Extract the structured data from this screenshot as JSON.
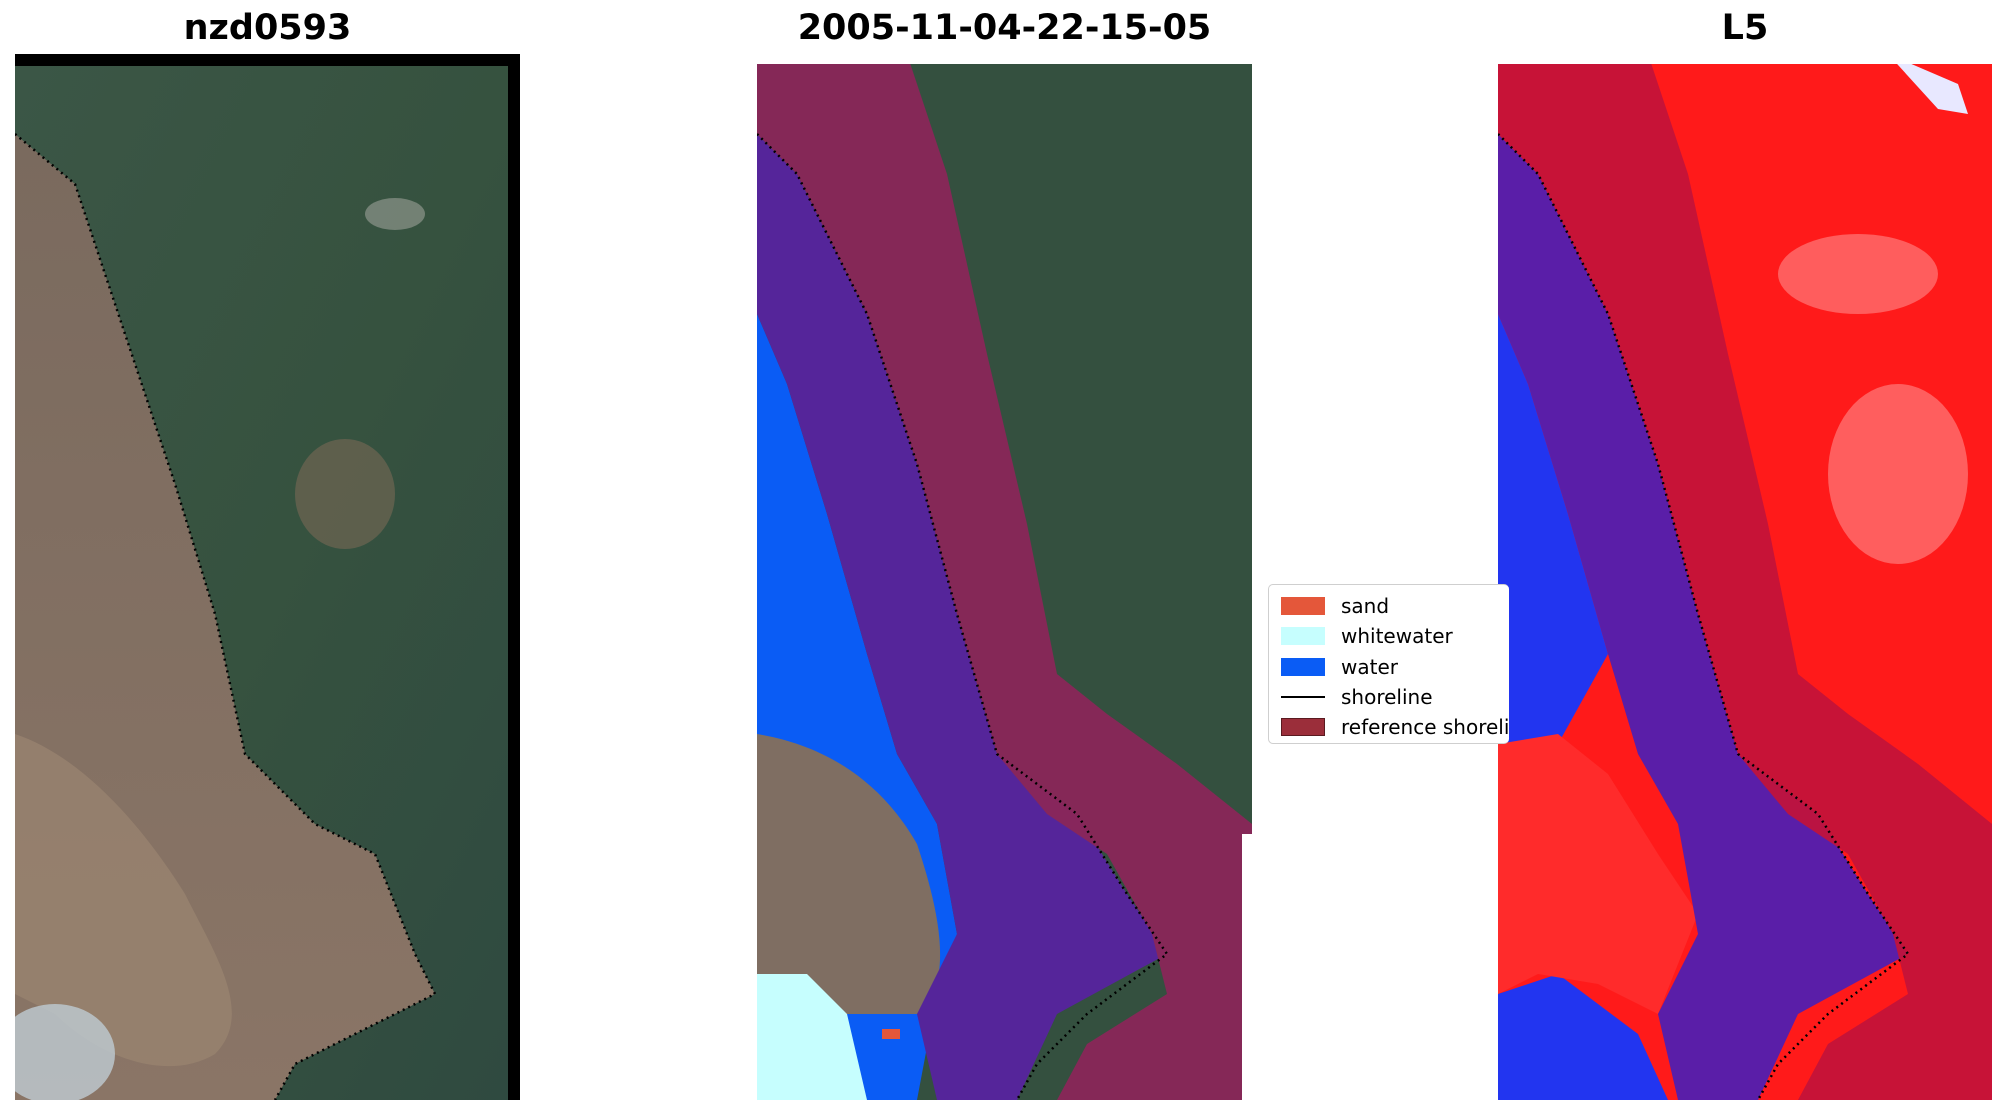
{
  "panels": [
    {
      "title": "nzd0593"
    },
    {
      "title": "2005-11-04-22-15-05"
    },
    {
      "title": "L5"
    }
  ],
  "legend": {
    "items": [
      {
        "label": "sand",
        "color": "#e4573a",
        "kind": "patch"
      },
      {
        "label": "whitewater",
        "color": "#c6fefe",
        "kind": "patch"
      },
      {
        "label": "water",
        "color": "#0a5cf5",
        "kind": "patch"
      },
      {
        "label": "shoreline",
        "color": "#000000",
        "kind": "line"
      },
      {
        "label": "reference shoreline buffer",
        "color": "#9b2e3a",
        "kind": "patch"
      }
    ]
  }
}
